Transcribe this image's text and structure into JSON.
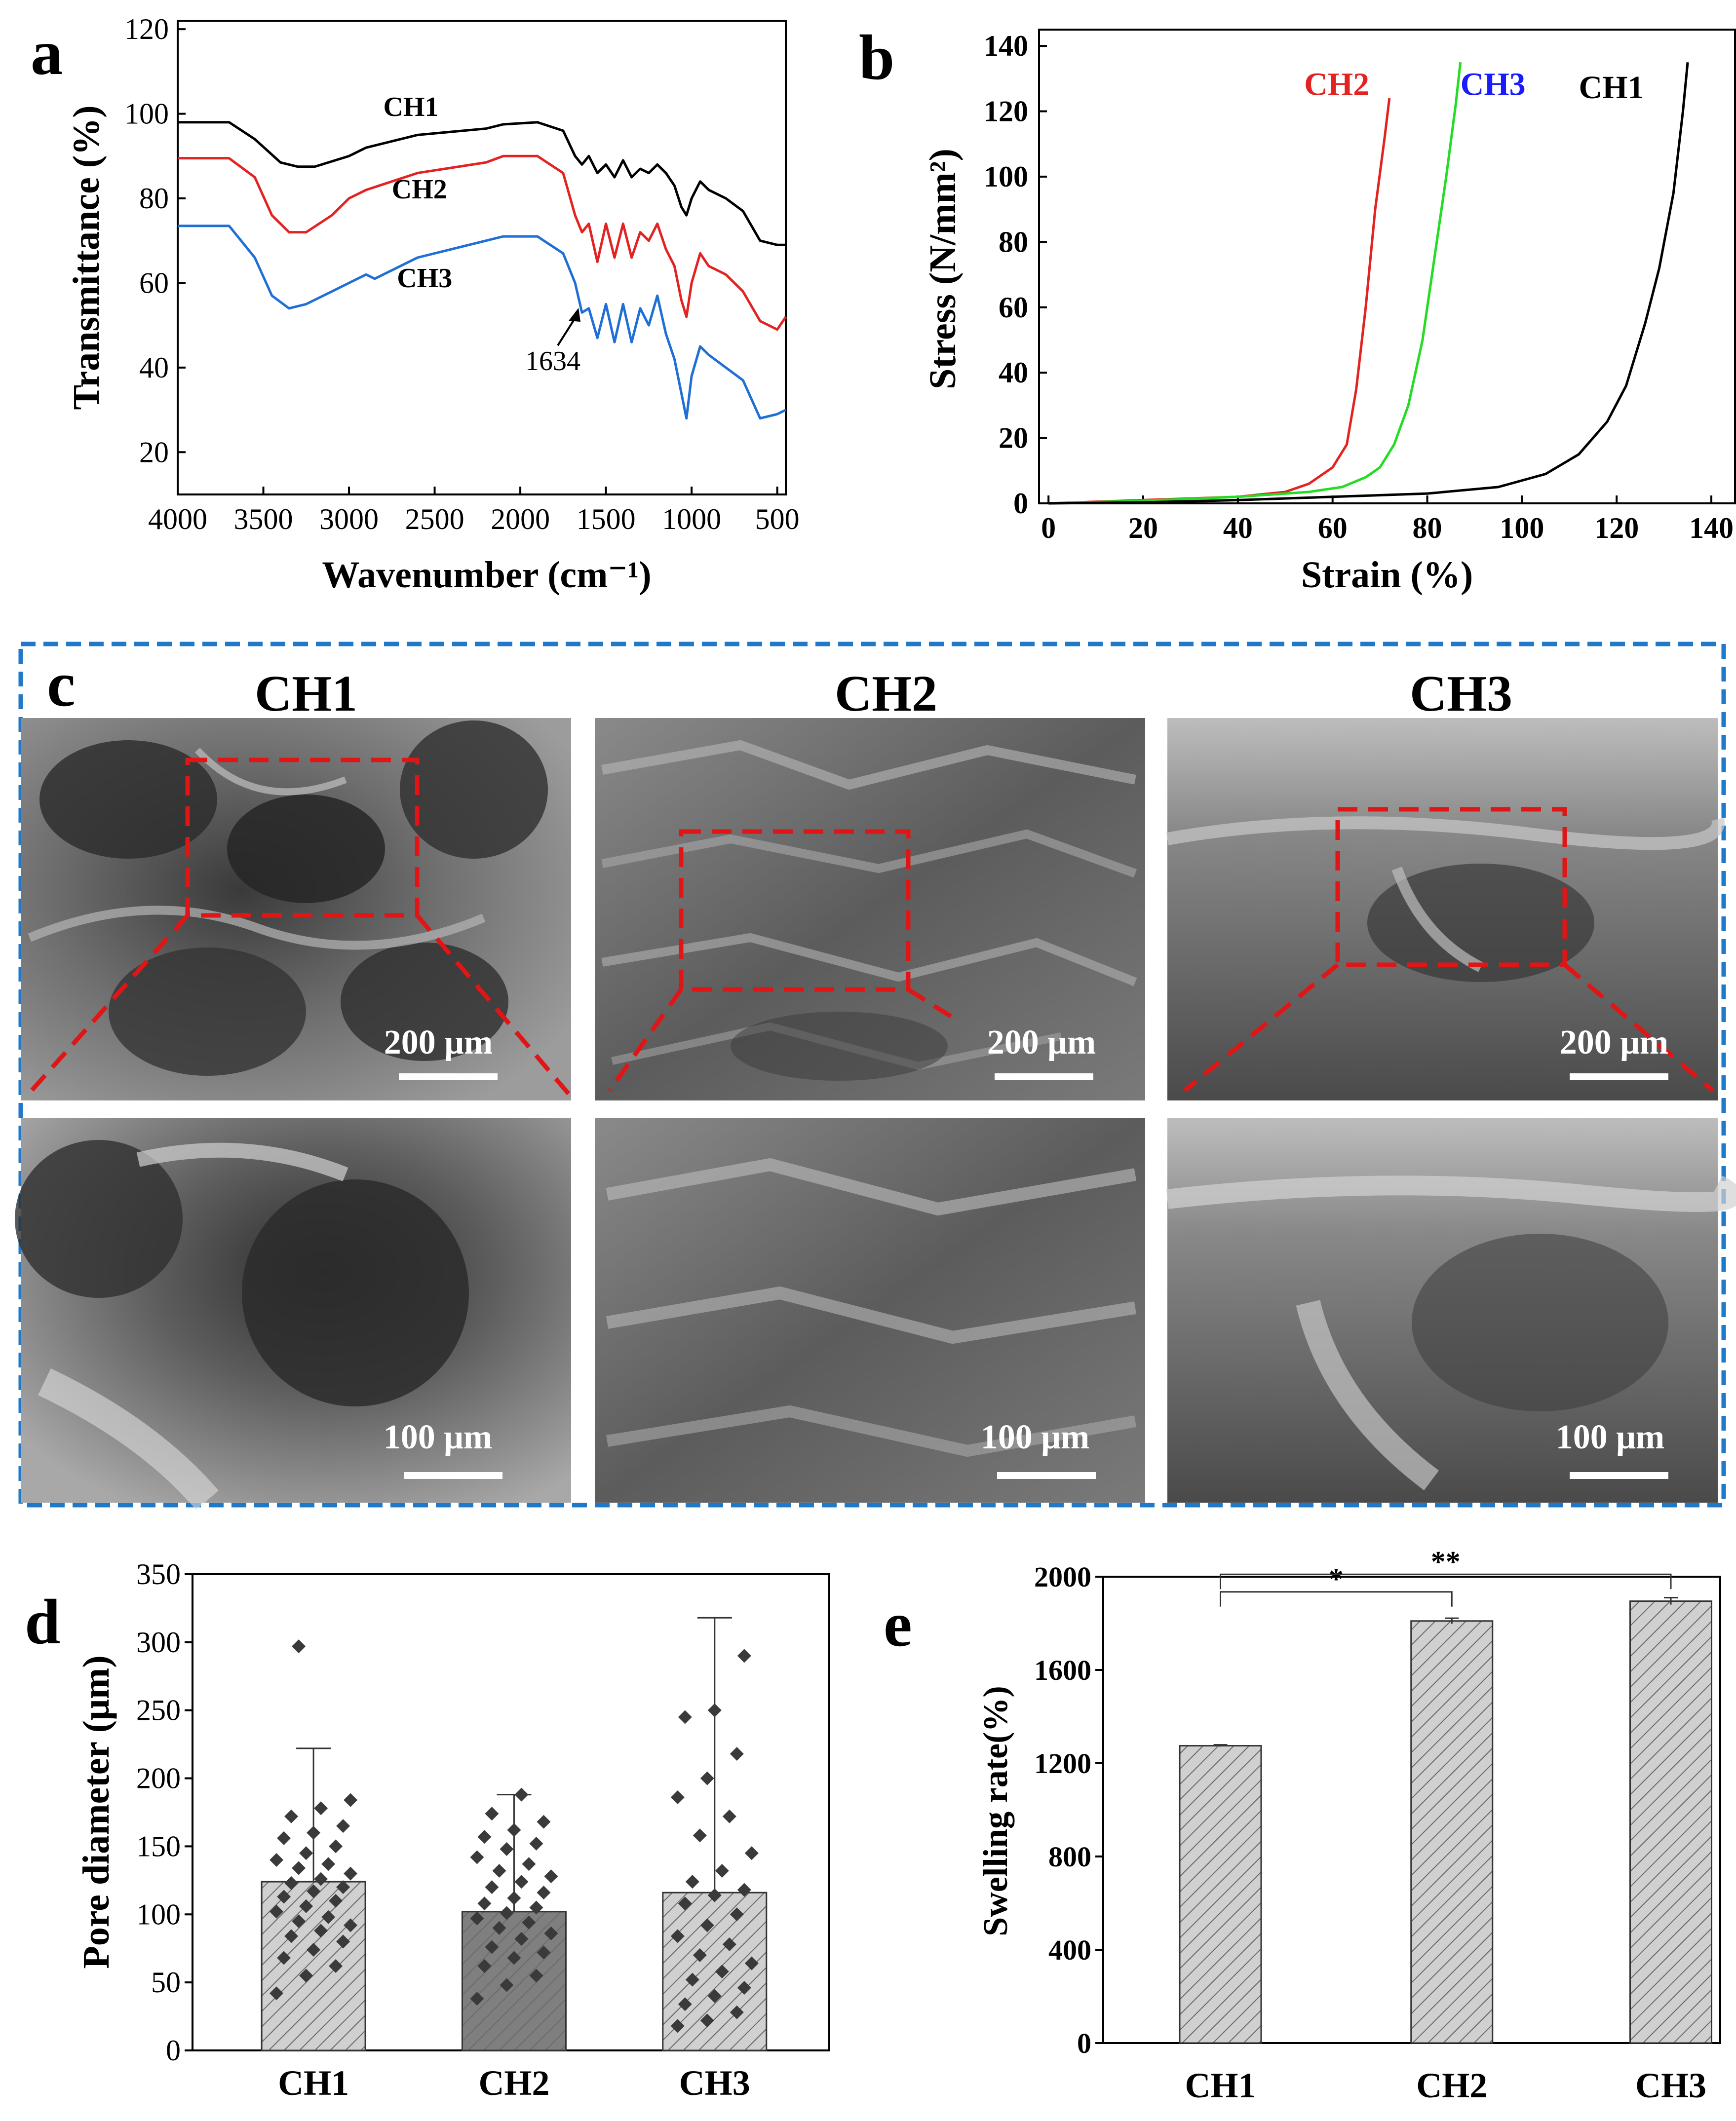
{
  "colors": {
    "ch1": "#000000",
    "ch2": "#e32222",
    "ch3": "#1f6fd6",
    "ch3_label": "#1a1aff",
    "ch3_stress": "#22dd22",
    "frame": "#1f78c8",
    "zoom": "#e01515",
    "bar_light": "#c8c8c8",
    "bar_dark": "#7a7a7a",
    "points": "#3a3a3a"
  },
  "panels": {
    "a": "a",
    "b": "b",
    "c": "c",
    "d": "d",
    "e": "e"
  },
  "chart_data": [
    {
      "panel": "a",
      "type": "line",
      "xlabel": "Wavenumber (cm⁻¹)",
      "ylabel": "Transmittance (%)",
      "xlim": [
        4000,
        450
      ],
      "ylim": [
        10,
        122
      ],
      "xticks": [
        4000,
        3500,
        3000,
        2500,
        2000,
        1500,
        1000,
        500
      ],
      "yticks": [
        20,
        40,
        60,
        80,
        100,
        120
      ],
      "annotation": {
        "text": "1634",
        "x": 1634
      },
      "series": [
        {
          "name": "CH1",
          "label": "CH1",
          "x": [
            4000,
            3700,
            3550,
            3400,
            3300,
            3200,
            3000,
            2900,
            2600,
            2200,
            2100,
            1900,
            1750,
            1680,
            1640,
            1600,
            1550,
            1500,
            1450,
            1400,
            1350,
            1300,
            1250,
            1200,
            1150,
            1100,
            1060,
            1030,
            1000,
            950,
            900,
            800,
            700,
            600,
            500,
            450
          ],
          "y": [
            98,
            98,
            94,
            88.5,
            87.5,
            87.5,
            90,
            92,
            95,
            96.5,
            97.5,
            98,
            96,
            90,
            88,
            90,
            86,
            88,
            85,
            89,
            85,
            87,
            86,
            88,
            86,
            83,
            78,
            76,
            80,
            84,
            82,
            80,
            77,
            70,
            69,
            69
          ]
        },
        {
          "name": "CH2",
          "label": "CH2",
          "x": [
            4000,
            3700,
            3550,
            3450,
            3350,
            3250,
            3100,
            3000,
            2900,
            2600,
            2200,
            2100,
            1900,
            1750,
            1680,
            1640,
            1600,
            1550,
            1500,
            1450,
            1400,
            1350,
            1300,
            1250,
            1200,
            1150,
            1100,
            1060,
            1030,
            1000,
            950,
            900,
            800,
            700,
            600,
            500,
            450
          ],
          "y": [
            89.5,
            89.5,
            85,
            76,
            72,
            72,
            76,
            80,
            82,
            86,
            88.5,
            90,
            90,
            86,
            76,
            72,
            74,
            65,
            74,
            66,
            74,
            66,
            72,
            70,
            74,
            68,
            64,
            56,
            52,
            60,
            67,
            64,
            62,
            58,
            51,
            49,
            52
          ]
        },
        {
          "name": "CH3",
          "label": "CH3",
          "x": [
            4000,
            3700,
            3550,
            3450,
            3350,
            3250,
            3100,
            3000,
            2900,
            2850,
            2600,
            2200,
            2100,
            1900,
            1750,
            1680,
            1640,
            1600,
            1550,
            1500,
            1450,
            1400,
            1350,
            1300,
            1250,
            1200,
            1150,
            1100,
            1060,
            1030,
            1000,
            950,
            900,
            800,
            700,
            600,
            500,
            450
          ],
          "y": [
            73.5,
            73.5,
            66,
            57,
            54,
            55,
            58,
            60,
            62,
            61,
            66,
            70,
            71,
            71,
            67,
            60,
            53,
            54,
            47,
            55,
            46,
            55,
            46,
            54,
            50,
            57,
            48,
            42,
            34,
            28,
            38,
            45,
            43,
            40,
            37,
            28,
            29,
            30
          ]
        }
      ]
    },
    {
      "panel": "b",
      "type": "line",
      "xlabel": "Strain (%)",
      "ylabel": "Stress (N/mm²)",
      "xlim": [
        -2,
        145
      ],
      "ylim": [
        0,
        145
      ],
      "xticks": [
        0,
        20,
        40,
        60,
        80,
        100,
        120,
        140
      ],
      "yticks": [
        0,
        20,
        40,
        60,
        80,
        100,
        120,
        140
      ],
      "series": [
        {
          "name": "CH2",
          "label": "CH2",
          "x": [
            0,
            20,
            40,
            50,
            55,
            60,
            63,
            65,
            67,
            69,
            71,
            72
          ],
          "y": [
            0,
            1,
            2,
            3.5,
            6,
            11,
            18,
            35,
            60,
            90,
            112,
            124
          ]
        },
        {
          "name": "CH3",
          "label": "CH3",
          "x": [
            0,
            20,
            40,
            55,
            62,
            67,
            70,
            73,
            76,
            79,
            82,
            84,
            86,
            87
          ],
          "y": [
            0,
            0.8,
            2,
            3.5,
            5,
            8,
            11,
            18,
            30,
            50,
            80,
            100,
            122,
            135
          ]
        },
        {
          "name": "CH1",
          "label": "CH1",
          "x": [
            0,
            20,
            40,
            60,
            80,
            95,
            105,
            112,
            118,
            122,
            126,
            129,
            132,
            134,
            135
          ],
          "y": [
            0,
            0.3,
            1,
            2,
            3,
            5,
            9,
            15,
            25,
            36,
            55,
            72,
            95,
            120,
            135
          ]
        }
      ]
    },
    {
      "panel": "d",
      "type": "bar",
      "ylabel": "Pore diameter  (μm)",
      "categories": [
        "CH1",
        "CH2",
        "CH3"
      ],
      "values": [
        124,
        102,
        116
      ],
      "error_max": [
        222,
        188,
        318
      ],
      "ylim": [
        0,
        350
      ],
      "yticks": [
        0,
        50,
        100,
        150,
        200,
        250,
        300,
        350
      ],
      "points": [
        [
          42,
          55,
          62,
          68,
          74,
          80,
          84,
          88,
          92,
          95,
          98,
          102,
          106,
          110,
          113,
          117,
          120,
          123,
          126,
          130,
          134,
          137,
          140,
          145,
          150,
          156,
          160,
          165,
          172,
          178,
          184,
          297
        ],
        [
          38,
          48,
          55,
          62,
          68,
          72,
          76,
          82,
          86,
          90,
          94,
          97,
          101,
          105,
          108,
          112,
          116,
          120,
          124,
          128,
          132,
          137,
          142,
          148,
          152,
          157,
          162,
          168,
          174,
          188
        ],
        [
          18,
          22,
          28,
          34,
          40,
          46,
          52,
          58,
          64,
          70,
          78,
          84,
          92,
          100,
          108,
          114,
          118,
          124,
          132,
          145,
          158,
          172,
          186,
          200,
          218,
          245,
          250,
          290
        ]
      ]
    },
    {
      "panel": "e",
      "type": "bar",
      "ylabel": "Swelling rate(%)",
      "categories": [
        "CH1",
        "CH2",
        "CH3"
      ],
      "values": [
        1275,
        1810,
        1895
      ],
      "errors": [
        4,
        12,
        15
      ],
      "ylim": [
        0,
        2000
      ],
      "yticks": [
        0,
        400,
        800,
        1200,
        1600,
        2000
      ],
      "significance": [
        {
          "from": "CH1",
          "to": "CH2",
          "label": "*"
        },
        {
          "from": "CH1",
          "to": "CH3",
          "label": "**"
        }
      ]
    }
  ],
  "sem": {
    "titles": [
      "CH1",
      "CH2",
      "CH3"
    ],
    "scale_top": "200 μm",
    "scale_bottom": "100 μm"
  }
}
